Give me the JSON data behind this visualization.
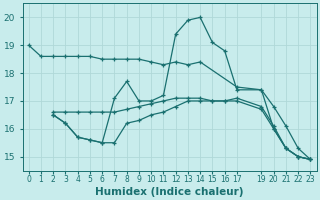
{
  "xlabel": "Humidex (Indice chaleur)",
  "bg_color": "#c8ecec",
  "grid_color": "#b0d8d8",
  "line_color": "#1a7070",
  "xlim": [
    -0.5,
    23.5
  ],
  "ylim": [
    14.5,
    20.5
  ],
  "yticks": [
    15,
    16,
    17,
    18,
    19,
    20
  ],
  "xticks": [
    0,
    1,
    2,
    3,
    4,
    5,
    6,
    7,
    8,
    9,
    10,
    11,
    12,
    13,
    14,
    15,
    16,
    17,
    19,
    20,
    21,
    22,
    23
  ],
  "xtick_labels": [
    "0",
    "1",
    "2",
    "3",
    "4",
    "5",
    "6",
    "7",
    "8",
    "9",
    "10",
    "11",
    "12",
    "13",
    "14",
    "15",
    "16",
    "17",
    "19",
    "20",
    "21",
    "22",
    "23"
  ],
  "series": [
    {
      "x": [
        0,
        1,
        2,
        3,
        4,
        5,
        6,
        7,
        8,
        9,
        10,
        11,
        12,
        13,
        14,
        17,
        19,
        20,
        21,
        22,
        23
      ],
      "y": [
        19.0,
        18.6,
        18.6,
        18.6,
        18.6,
        18.6,
        18.5,
        18.5,
        18.5,
        18.5,
        18.4,
        18.3,
        18.4,
        18.3,
        18.4,
        17.5,
        17.4,
        16.0,
        15.3,
        15.0,
        14.9
      ]
    },
    {
      "x": [
        2,
        3,
        4,
        5,
        6,
        7,
        8,
        9,
        10,
        11,
        12,
        13,
        14,
        15,
        16,
        17,
        19,
        20,
        21,
        22,
        23
      ],
      "y": [
        16.6,
        16.6,
        16.6,
        16.6,
        16.6,
        16.6,
        16.7,
        16.8,
        16.9,
        17.0,
        17.1,
        17.1,
        17.1,
        17.0,
        17.0,
        17.1,
        16.8,
        16.1,
        15.3,
        15.0,
        14.9
      ]
    },
    {
      "x": [
        2,
        3,
        4,
        5,
        6,
        7,
        8,
        9,
        10,
        11,
        12,
        13,
        14,
        15,
        16,
        17,
        19,
        20,
        21,
        22,
        23
      ],
      "y": [
        16.5,
        16.2,
        15.7,
        15.6,
        15.5,
        15.5,
        16.2,
        16.3,
        16.5,
        16.6,
        16.8,
        17.0,
        17.0,
        17.0,
        17.0,
        17.0,
        16.7,
        16.0,
        15.3,
        15.0,
        14.9
      ]
    },
    {
      "x": [
        2,
        3,
        4,
        5,
        6,
        7,
        8,
        9,
        10,
        11,
        12,
        13,
        14,
        15,
        16,
        17,
        19,
        20,
        21,
        22,
        23
      ],
      "y": [
        16.5,
        16.2,
        15.7,
        15.6,
        15.5,
        17.1,
        17.7,
        17.0,
        17.0,
        17.2,
        19.4,
        19.9,
        20.0,
        19.1,
        18.8,
        17.4,
        17.4,
        16.8,
        16.1,
        15.3,
        14.9
      ]
    }
  ]
}
